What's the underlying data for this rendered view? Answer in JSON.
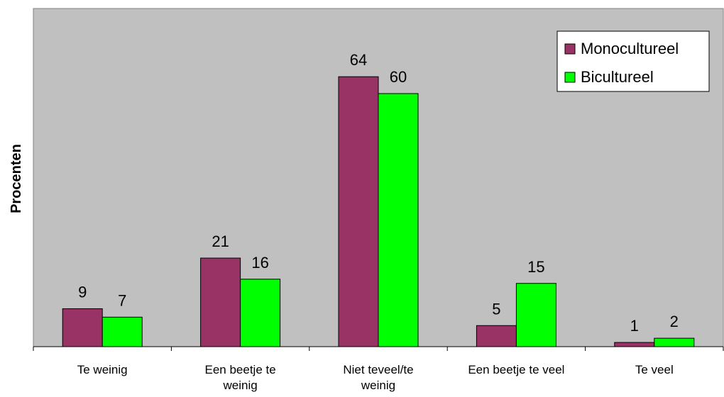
{
  "chart_data": {
    "type": "bar",
    "title": "",
    "xlabel": "",
    "ylabel": "Procenten",
    "categories": [
      "Te weinig",
      "Een beetje te weinig",
      "Niet teveel/te weinig",
      "Een beetje te veel",
      "Te veel"
    ],
    "category_lines": [
      [
        "Te weinig"
      ],
      [
        "Een beetje te",
        "weinig"
      ],
      [
        "Niet teveel/te",
        "weinig"
      ],
      [
        "Een beetje te veel"
      ],
      [
        "Te veel"
      ]
    ],
    "series": [
      {
        "name": "Monocultureel",
        "values": [
          9,
          21,
          64,
          5,
          1
        ],
        "color": "#993366"
      },
      {
        "name": "Bicultureel",
        "values": [
          7,
          16,
          60,
          15,
          2
        ],
        "color": "#00ff00"
      }
    ],
    "ylim": [
      0,
      80
    ],
    "grid": false,
    "legend": "top-right",
    "plot_background": "#c0c0c0",
    "data_labels": true
  }
}
